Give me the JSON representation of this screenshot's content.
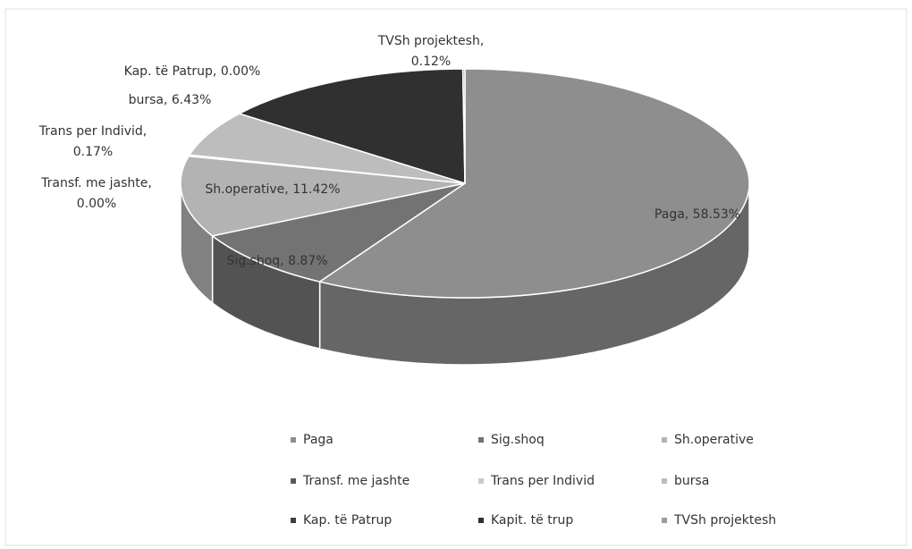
{
  "chart_data": {
    "type": "pie3d",
    "categories": [
      "Paga",
      "Sig.shoq",
      "Sh.operative",
      "Transf. me jashte",
      "Trans per Individ",
      "bursa",
      "Kap. të Patrup",
      "Kapit. të trup",
      "TVSh projektesh"
    ],
    "values": [
      58.53,
      8.87,
      11.42,
      0.0,
      0.17,
      6.43,
      0.0,
      14.46,
      0.12
    ],
    "value_labels": [
      "Paga, 58.53%",
      "Sig.shoq, 8.87%",
      "Sh.operative, 11.42%",
      "Transf. me jashte, 0.00%",
      "Trans per Individ, 0.17%",
      "bursa, 6.43%",
      "Kap. të Patrup, 0.00%",
      null,
      "TVSh projektesh, 0.12%"
    ],
    "colors": [
      "#8e8e8e",
      "#737373",
      "#b3b3b3",
      "#5a5a5a",
      "#c9c9c9",
      "#bdbdbd",
      "#404040",
      "#303030",
      "#9c9c9c"
    ],
    "legend": "bottom"
  }
}
